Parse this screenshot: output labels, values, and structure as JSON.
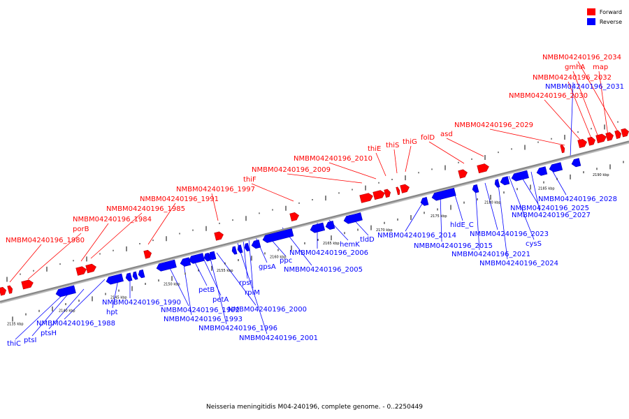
{
  "legend": {
    "items": [
      {
        "label": "Forward",
        "color": "#ff0000"
      },
      {
        "label": "Reverse",
        "color": "#0000ff"
      }
    ]
  },
  "caption": "Neisseria meningitidis M04-240196, complete genome. - 0..2250449",
  "colors": {
    "forward": "#ff0000",
    "reverse": "#0000ff",
    "backbone": "#888888"
  },
  "ticks": [
    "2135 kbp",
    "2140 kbp",
    "2145 kbp",
    "2150 kbp",
    "2155 kbp",
    "2160 kbp",
    "2165 kbp",
    "2170 kbp",
    "2175 kbp",
    "2180 kbp",
    "2185 kbp",
    "2190 kbp"
  ],
  "forward_labels": [
    "NMBM04240196_1980",
    "porB",
    "NMBM04240196_1984",
    "NMBM04240196_1985",
    "NMBM04240196_1991",
    "NMBM04240196_1997",
    "thiF",
    "NMBM04240196_2009",
    "NMBM04240196_2010",
    "thiE",
    "thiS",
    "thiG",
    "folD",
    "asd",
    "NMBM04240196_2029",
    "NMBM04240196_2030",
    "NMBM04240196_2032",
    "gmhA",
    "map",
    "NMBM04240196_2034"
  ],
  "reverse_labels": [
    "thiC",
    "ptsI",
    "ptsH",
    "NMBM04240196_1988",
    "hpt",
    "NMBM04240196_1990",
    "NMBM04240196_1992",
    "NMBM04240196_1993",
    "petB",
    "petA",
    "NMBM04240196_1996",
    "NMBM04240196_2000",
    "NMBM04240196_2001",
    "rpsI",
    "rplM",
    "gpsA",
    "ppc",
    "NMBM04240196_2005",
    "NMBM04240196_2006",
    "hemK",
    "tldD",
    "NMBM04240196_2014",
    "NMBM04240196_2015",
    "hldE_C",
    "NMBM04240196_2021",
    "NMBM04240196_2023",
    "NMBM04240196_2024",
    "cysS",
    "NMBM04240196_2025",
    "NMBM04240196_2027",
    "NMBM04240196_2028",
    "NMBM04240196_2031"
  ]
}
